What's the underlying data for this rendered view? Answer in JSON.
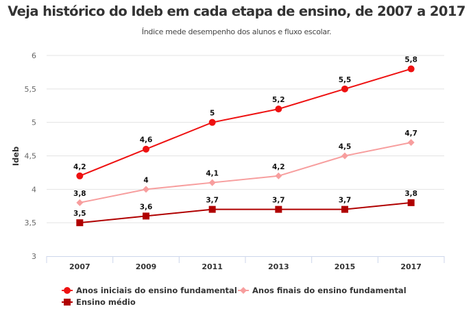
{
  "header": {
    "title": "Veja histórico do Ideb em cada etapa de ensino, de 2007 a 2017",
    "subtitle": "Índice mede desempenho dos alunos e fluxo escolar."
  },
  "chart_data": {
    "type": "line",
    "title": "Veja histórico do Ideb em cada etapa de ensino, de 2007 a 2017",
    "subtitle": "Índice mede desempenho dos alunos e fluxo escolar.",
    "xlabel": "",
    "ylabel": "Ideb",
    "categories": [
      "2007",
      "2009",
      "2011",
      "2013",
      "2015",
      "2017"
    ],
    "ylim": [
      3,
      6
    ],
    "yticks": [
      3,
      3.5,
      4,
      4.5,
      5,
      5.5,
      6
    ],
    "ytick_labels": [
      "3",
      "3,5",
      "4",
      "4,5",
      "5",
      "5,5",
      "6"
    ],
    "grid": true,
    "legend_position": "bottom-left",
    "series": [
      {
        "name": "Anos iniciais do ensino fundamental",
        "color": "#ee1111",
        "marker": "circle",
        "values": [
          4.2,
          4.6,
          5.0,
          5.2,
          5.5,
          5.8
        ],
        "labels": [
          "4,2",
          "4,6",
          "5",
          "5,2",
          "5,5",
          "5,8"
        ]
      },
      {
        "name": "Anos finais do ensino fundamental",
        "color": "#f79e9e",
        "marker": "diamond",
        "values": [
          3.8,
          4.0,
          4.1,
          4.2,
          4.5,
          4.7
        ],
        "labels": [
          "3,8",
          "4",
          "4,1",
          "4,2",
          "4,5",
          "4,7"
        ]
      },
      {
        "name": "Ensino médio",
        "color": "#b00000",
        "marker": "square",
        "values": [
          3.5,
          3.6,
          3.7,
          3.7,
          3.7,
          3.8
        ],
        "labels": [
          "3,5",
          "3,6",
          "3,7",
          "3,7",
          "3,7",
          "3,8"
        ]
      }
    ]
  }
}
